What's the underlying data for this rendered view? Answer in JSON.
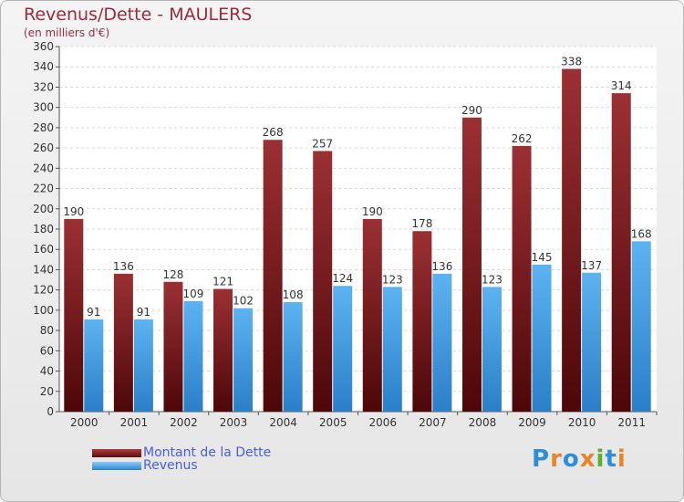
{
  "title": "Revenus/Dette - MAULERS",
  "subtitle": "(en milliers d'€)",
  "chart_data": {
    "type": "bar",
    "categories": [
      "2000",
      "2001",
      "2002",
      "2003",
      "2004",
      "2005",
      "2006",
      "2007",
      "2008",
      "2009",
      "2010",
      "2011"
    ],
    "series": [
      {
        "name": "Montant de la Dette",
        "values": [
          190,
          136,
          128,
          121,
          268,
          257,
          190,
          178,
          290,
          262,
          338,
          314
        ],
        "color": "#7d1f22"
      },
      {
        "name": "Revenus",
        "values": [
          91,
          91,
          109,
          102,
          108,
          124,
          123,
          136,
          123,
          145,
          137,
          168
        ],
        "color": "#4aa3e8"
      }
    ],
    "ylim": [
      0,
      360
    ],
    "yticks": [
      "0",
      "20",
      "40",
      "60",
      "80",
      "100",
      "120",
      "140",
      "160",
      "180",
      "200",
      "220",
      "240",
      "260",
      "280",
      "300",
      "320",
      "340",
      "360"
    ],
    "grid": true,
    "legend_position": "bottom-left"
  },
  "brand": {
    "letters": [
      "P",
      "r",
      "o",
      "x",
      "i",
      "t",
      "i"
    ],
    "colors": [
      "#2f8fd6",
      "#e8852b",
      "#2f8fd6",
      "#e8852b",
      "#58b030",
      "#2f8fd6",
      "#e8852b"
    ]
  }
}
